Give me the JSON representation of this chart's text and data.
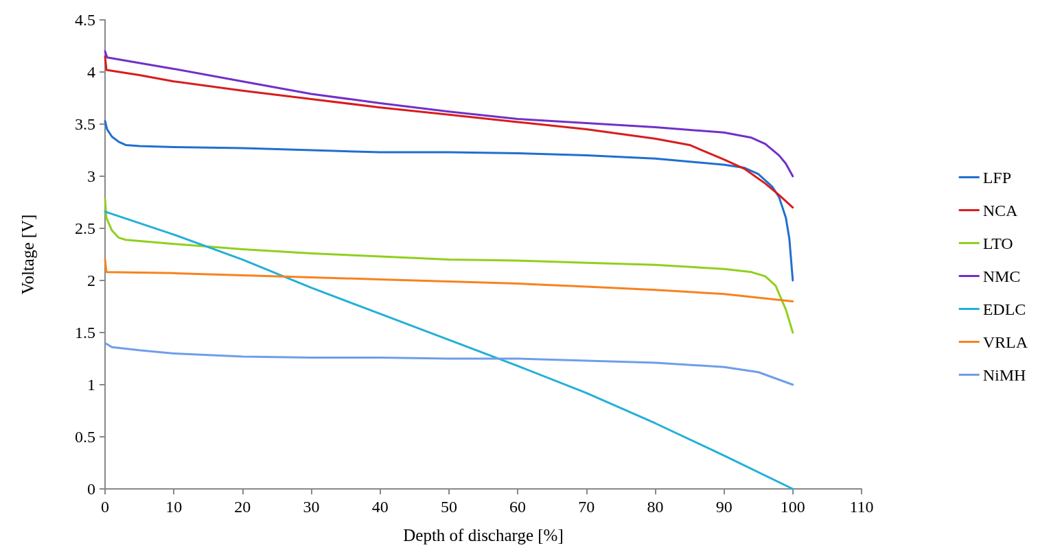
{
  "chart_data": {
    "type": "line",
    "xlabel": "Depth of discharge [%]",
    "ylabel": "Voltage [V]",
    "xlim": [
      0,
      110
    ],
    "xticks": [
      0,
      10,
      20,
      30,
      40,
      50,
      60,
      70,
      80,
      90,
      100,
      110
    ],
    "ylim": [
      0,
      4.5
    ],
    "yticks": [
      0,
      0.5,
      1,
      1.5,
      2,
      2.5,
      3,
      3.5,
      4,
      4.5
    ],
    "grid": false,
    "legend": "right",
    "marker": "none",
    "line_style": "solid",
    "series": [
      {
        "name": "LFP",
        "color": "#1f6fd1",
        "x": [
          0,
          0.3,
          1,
          2,
          3,
          5,
          10,
          20,
          30,
          40,
          50,
          60,
          70,
          80,
          85,
          90,
          93,
          95,
          97,
          98,
          99,
          99.5,
          100
        ],
        "values": [
          3.53,
          3.45,
          3.38,
          3.33,
          3.3,
          3.29,
          3.28,
          3.27,
          3.25,
          3.23,
          3.23,
          3.22,
          3.2,
          3.17,
          3.14,
          3.11,
          3.08,
          3.02,
          2.9,
          2.8,
          2.6,
          2.4,
          2.0
        ]
      },
      {
        "name": "NCA",
        "color": "#d91c1c",
        "x": [
          0,
          0.2,
          5,
          10,
          20,
          30,
          40,
          50,
          60,
          70,
          80,
          85,
          90,
          93,
          96,
          98,
          100
        ],
        "values": [
          4.15,
          4.02,
          3.97,
          3.91,
          3.82,
          3.74,
          3.66,
          3.59,
          3.52,
          3.45,
          3.36,
          3.3,
          3.16,
          3.07,
          2.93,
          2.82,
          2.7
        ]
      },
      {
        "name": "LTO",
        "color": "#8fd01c",
        "x": [
          0,
          0.2,
          1,
          2,
          3,
          10,
          20,
          30,
          40,
          50,
          60,
          70,
          80,
          90,
          94,
          96,
          97.5,
          99,
          100
        ],
        "values": [
          2.78,
          2.6,
          2.48,
          2.41,
          2.39,
          2.35,
          2.3,
          2.26,
          2.23,
          2.2,
          2.19,
          2.17,
          2.15,
          2.11,
          2.08,
          2.04,
          1.95,
          1.72,
          1.5
        ]
      },
      {
        "name": "NMC",
        "color": "#7030c8",
        "x": [
          0,
          0.3,
          10,
          20,
          30,
          40,
          50,
          60,
          70,
          80,
          90,
          94,
          96,
          98,
          99,
          100
        ],
        "values": [
          4.2,
          4.14,
          4.03,
          3.91,
          3.79,
          3.7,
          3.62,
          3.55,
          3.51,
          3.47,
          3.42,
          3.37,
          3.31,
          3.2,
          3.12,
          3.0
        ]
      },
      {
        "name": "EDLC",
        "color": "#22b0d8",
        "x": [
          0,
          10,
          20,
          30,
          40,
          50,
          60,
          70,
          80,
          90,
          100
        ],
        "values": [
          2.66,
          2.44,
          2.2,
          1.93,
          1.68,
          1.43,
          1.18,
          0.92,
          0.63,
          0.32,
          0
        ]
      },
      {
        "name": "VRLA",
        "color": "#f7821e",
        "x": [
          0,
          0.2,
          10,
          20,
          30,
          40,
          50,
          60,
          70,
          80,
          90,
          100
        ],
        "values": [
          2.2,
          2.08,
          2.07,
          2.05,
          2.03,
          2.01,
          1.99,
          1.97,
          1.94,
          1.91,
          1.87,
          1.8
        ]
      },
      {
        "name": "NiMH",
        "color": "#6e9ee8",
        "x": [
          0,
          1,
          5,
          10,
          20,
          30,
          40,
          50,
          60,
          70,
          80,
          90,
          95,
          100
        ],
        "values": [
          1.4,
          1.36,
          1.33,
          1.3,
          1.27,
          1.26,
          1.26,
          1.25,
          1.25,
          1.23,
          1.21,
          1.17,
          1.12,
          1.0
        ]
      }
    ]
  }
}
